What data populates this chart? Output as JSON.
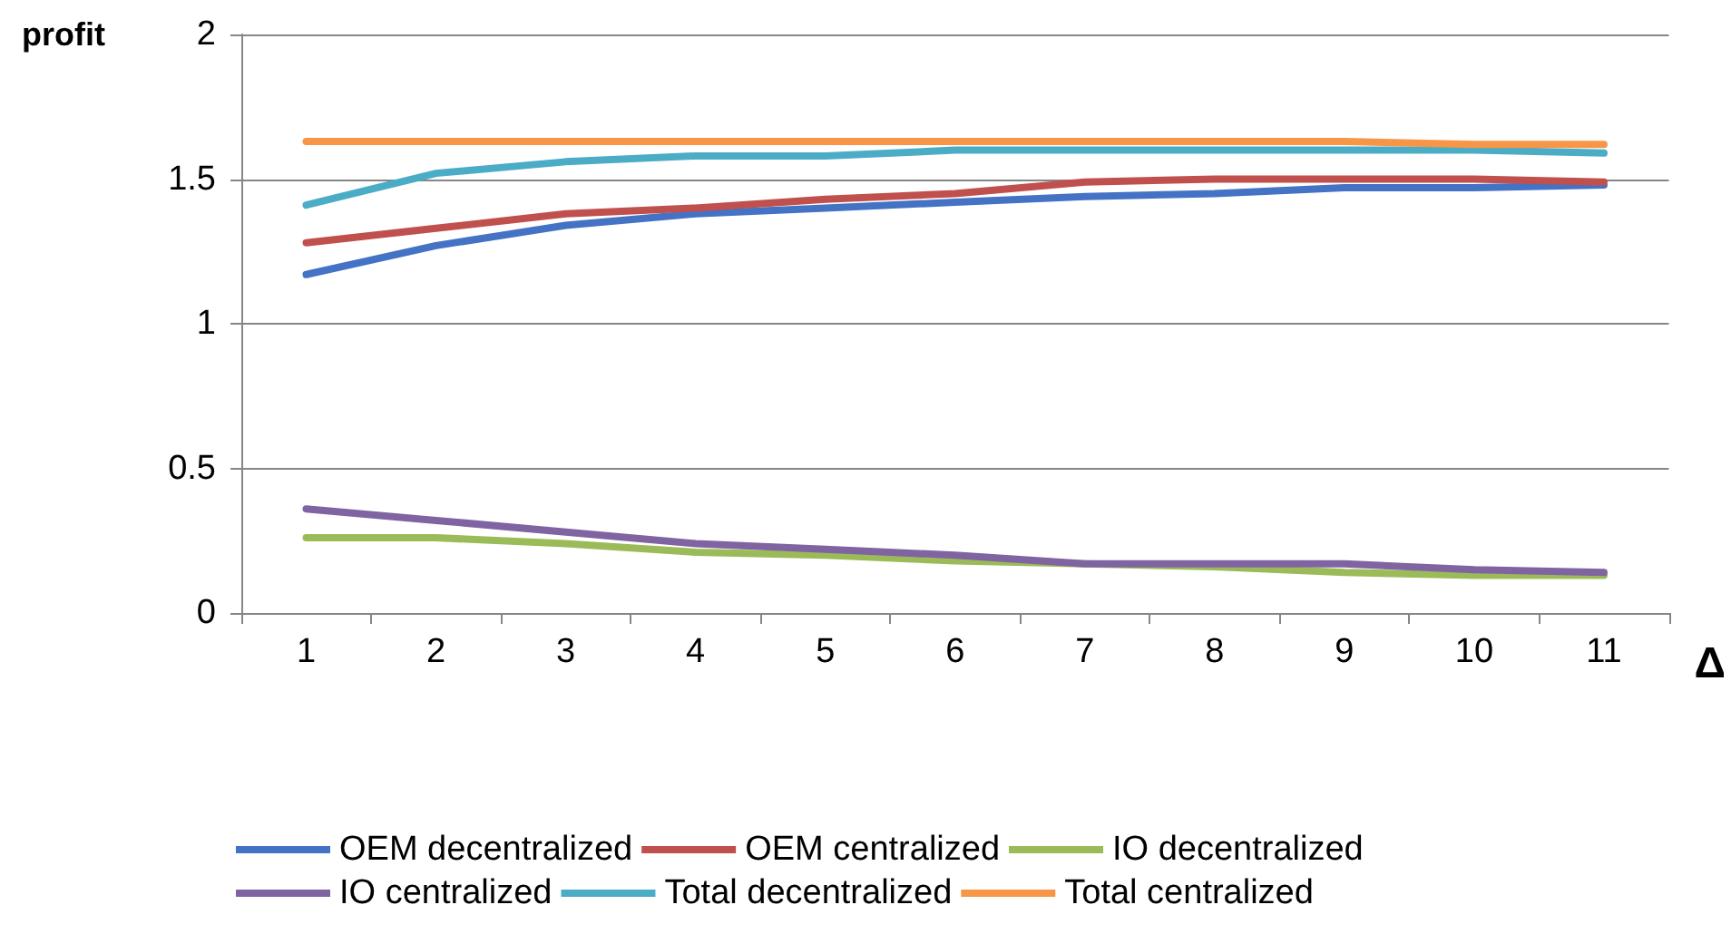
{
  "chart_data": {
    "type": "line",
    "xlabel": "Δ",
    "ylabel": "profit",
    "categories": [
      "1",
      "2",
      "3",
      "4",
      "5",
      "6",
      "7",
      "8",
      "9",
      "10",
      "11"
    ],
    "series": [
      {
        "name": "OEM decentralized",
        "color": "#4472c4",
        "values": [
          1.17,
          1.27,
          1.34,
          1.38,
          1.4,
          1.42,
          1.44,
          1.45,
          1.47,
          1.47,
          1.48
        ]
      },
      {
        "name": "OEM centralized",
        "color": "#c0504d",
        "values": [
          1.28,
          1.33,
          1.38,
          1.4,
          1.43,
          1.45,
          1.49,
          1.5,
          1.5,
          1.5,
          1.49
        ]
      },
      {
        "name": "IO decentralized",
        "color": "#9bbb59",
        "values": [
          0.26,
          0.26,
          0.24,
          0.21,
          0.2,
          0.18,
          0.17,
          0.16,
          0.14,
          0.13,
          0.13
        ]
      },
      {
        "name": "IO centralized",
        "color": "#8064a2",
        "values": [
          0.36,
          0.32,
          0.28,
          0.24,
          0.22,
          0.2,
          0.17,
          0.17,
          0.17,
          0.15,
          0.14
        ]
      },
      {
        "name": "Total decentralized",
        "color": "#4bacc6",
        "values": [
          1.41,
          1.52,
          1.56,
          1.58,
          1.58,
          1.6,
          1.6,
          1.6,
          1.6,
          1.6,
          1.59
        ]
      },
      {
        "name": "Total centralized",
        "color": "#f79646",
        "values": [
          1.63,
          1.63,
          1.63,
          1.63,
          1.63,
          1.63,
          1.63,
          1.63,
          1.63,
          1.62,
          1.62
        ]
      }
    ],
    "ylim": [
      0,
      2
    ],
    "yticks": [
      0,
      0.5,
      1,
      1.5,
      2
    ],
    "grid": "y",
    "legend": "bottom",
    "marker": "none",
    "line_style": "solid"
  }
}
